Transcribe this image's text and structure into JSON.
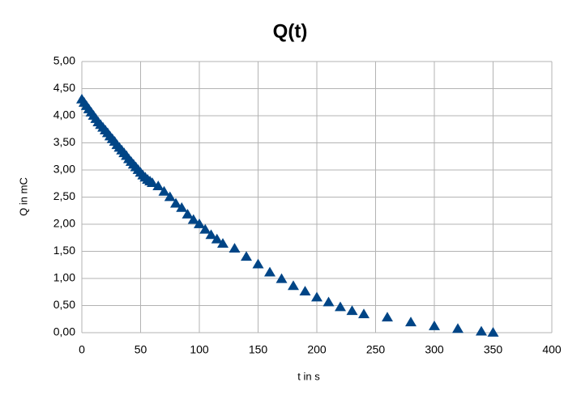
{
  "chart_data": {
    "type": "scatter",
    "title": "Q(t)",
    "x_label": "t in s",
    "y_label": "Q in mC",
    "series": [
      {
        "name": "Q",
        "color": "#004586",
        "x": [
          0,
          2,
          4,
          6,
          8,
          10,
          12,
          14,
          16,
          18,
          20,
          22,
          24,
          26,
          28,
          30,
          32,
          34,
          36,
          38,
          40,
          42,
          44,
          46,
          48,
          50,
          52,
          54,
          56,
          58,
          60,
          65,
          70,
          75,
          80,
          85,
          90,
          95,
          100,
          105,
          110,
          115,
          120,
          130,
          140,
          150,
          160,
          170,
          180,
          190,
          200,
          210,
          220,
          230,
          240,
          260,
          280,
          300,
          320,
          340,
          350
        ],
        "values": [
          4.3,
          4.24,
          4.18,
          4.12,
          4.06,
          4.0,
          3.94,
          3.88,
          3.83,
          3.78,
          3.73,
          3.68,
          3.62,
          3.57,
          3.52,
          3.46,
          3.41,
          3.36,
          3.31,
          3.26,
          3.2,
          3.15,
          3.1,
          3.05,
          3.0,
          2.95,
          2.9,
          2.86,
          2.82,
          2.79,
          2.76,
          2.7,
          2.6,
          2.5,
          2.38,
          2.3,
          2.18,
          2.08,
          2.0,
          1.9,
          1.8,
          1.72,
          1.64,
          1.55,
          1.4,
          1.26,
          1.11,
          0.99,
          0.86,
          0.76,
          0.65,
          0.56,
          0.47,
          0.4,
          0.34,
          0.28,
          0.19,
          0.12,
          0.07,
          0.02,
          0.0
        ]
      }
    ],
    "xlim": [
      0,
      400
    ],
    "xticks": [
      0,
      50,
      100,
      150,
      200,
      250,
      300,
      350,
      400
    ],
    "ylim": [
      0,
      5
    ],
    "yticks": [
      {
        "value": 0,
        "label": "0,00"
      },
      {
        "value": 0.5,
        "label": "0,50"
      },
      {
        "value": 1,
        "label": "1,00"
      },
      {
        "value": 1.5,
        "label": "1,50"
      },
      {
        "value": 2,
        "label": "2,00"
      },
      {
        "value": 2.5,
        "label": "2,50"
      },
      {
        "value": 3,
        "label": "3,00"
      },
      {
        "value": 3.5,
        "label": "3,50"
      },
      {
        "value": 4,
        "label": "4,00"
      },
      {
        "value": 4.5,
        "label": "4,50"
      },
      {
        "value": 5,
        "label": "5,00"
      }
    ],
    "grid": true,
    "marker": "triangle"
  }
}
